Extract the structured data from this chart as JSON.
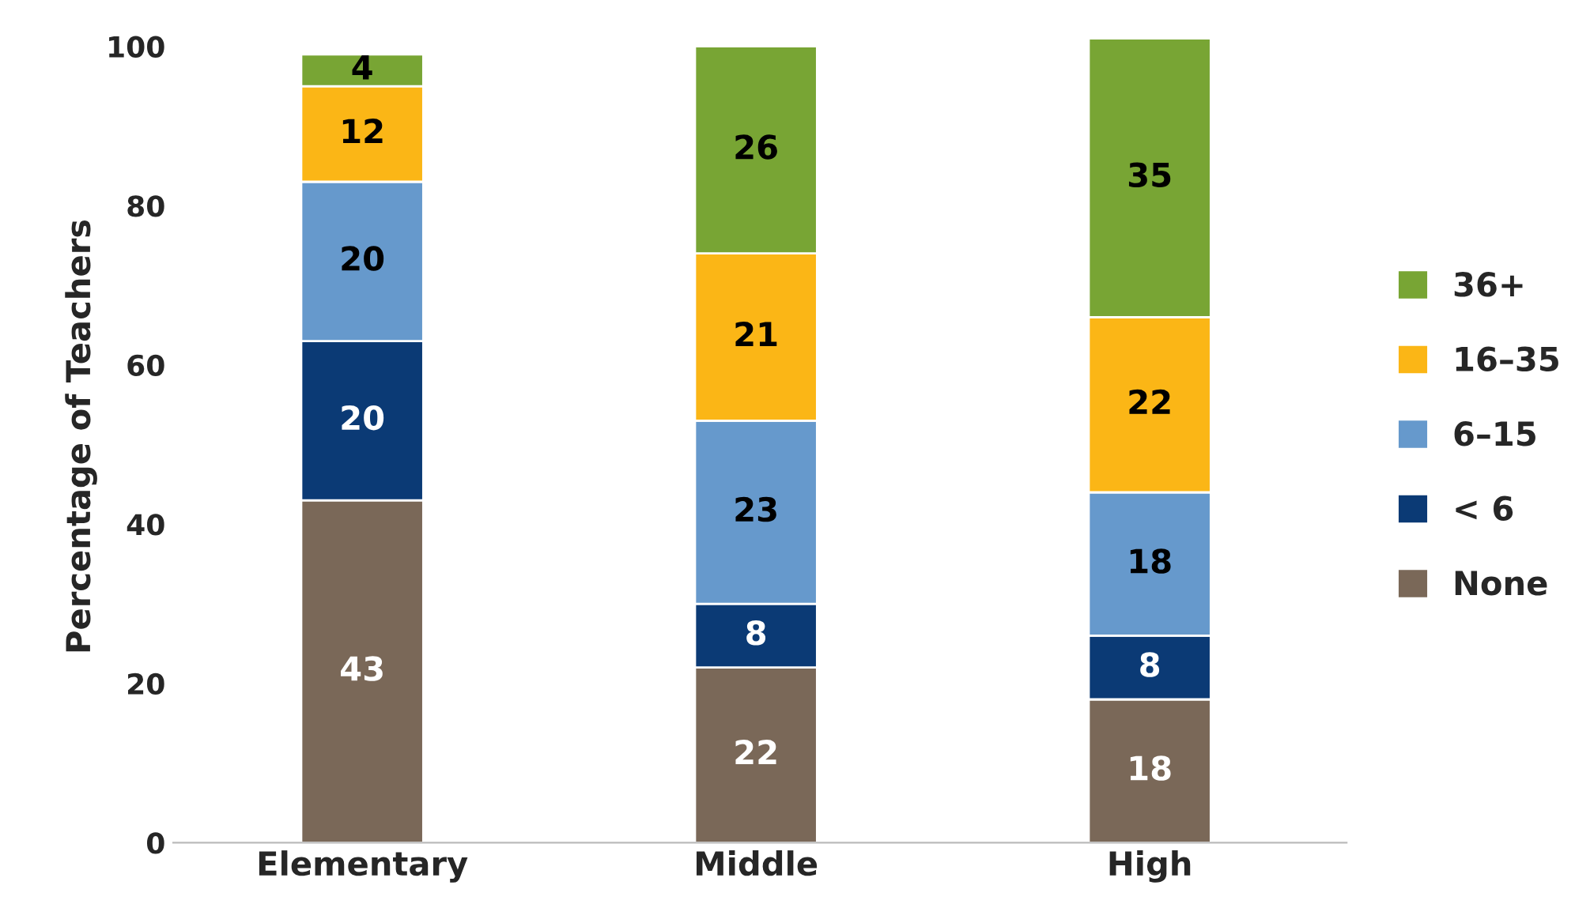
{
  "chart_data": {
    "type": "bar",
    "stacked": true,
    "ylabel": "Percentage of Teachers",
    "categories": [
      "Elementary",
      "Middle",
      "High"
    ],
    "series": [
      {
        "name": "None",
        "color": "#7a6858",
        "values": [
          43,
          22,
          18
        ]
      },
      {
        "name": "< 6",
        "color": "#0b3a75",
        "values": [
          20,
          8,
          8
        ]
      },
      {
        "name": "6–15",
        "color": "#6699cc",
        "values": [
          20,
          23,
          18
        ]
      },
      {
        "name": "16–35",
        "color": "#fbb616",
        "values": [
          12,
          21,
          22
        ]
      },
      {
        "name": "36+",
        "color": "#78a534",
        "values": [
          4,
          26,
          35
        ]
      }
    ],
    "ylim": [
      0,
      102
    ],
    "yticks": [
      0,
      20,
      40,
      60,
      80,
      100
    ],
    "data_labels": true,
    "legend": "right",
    "grid": false
  }
}
